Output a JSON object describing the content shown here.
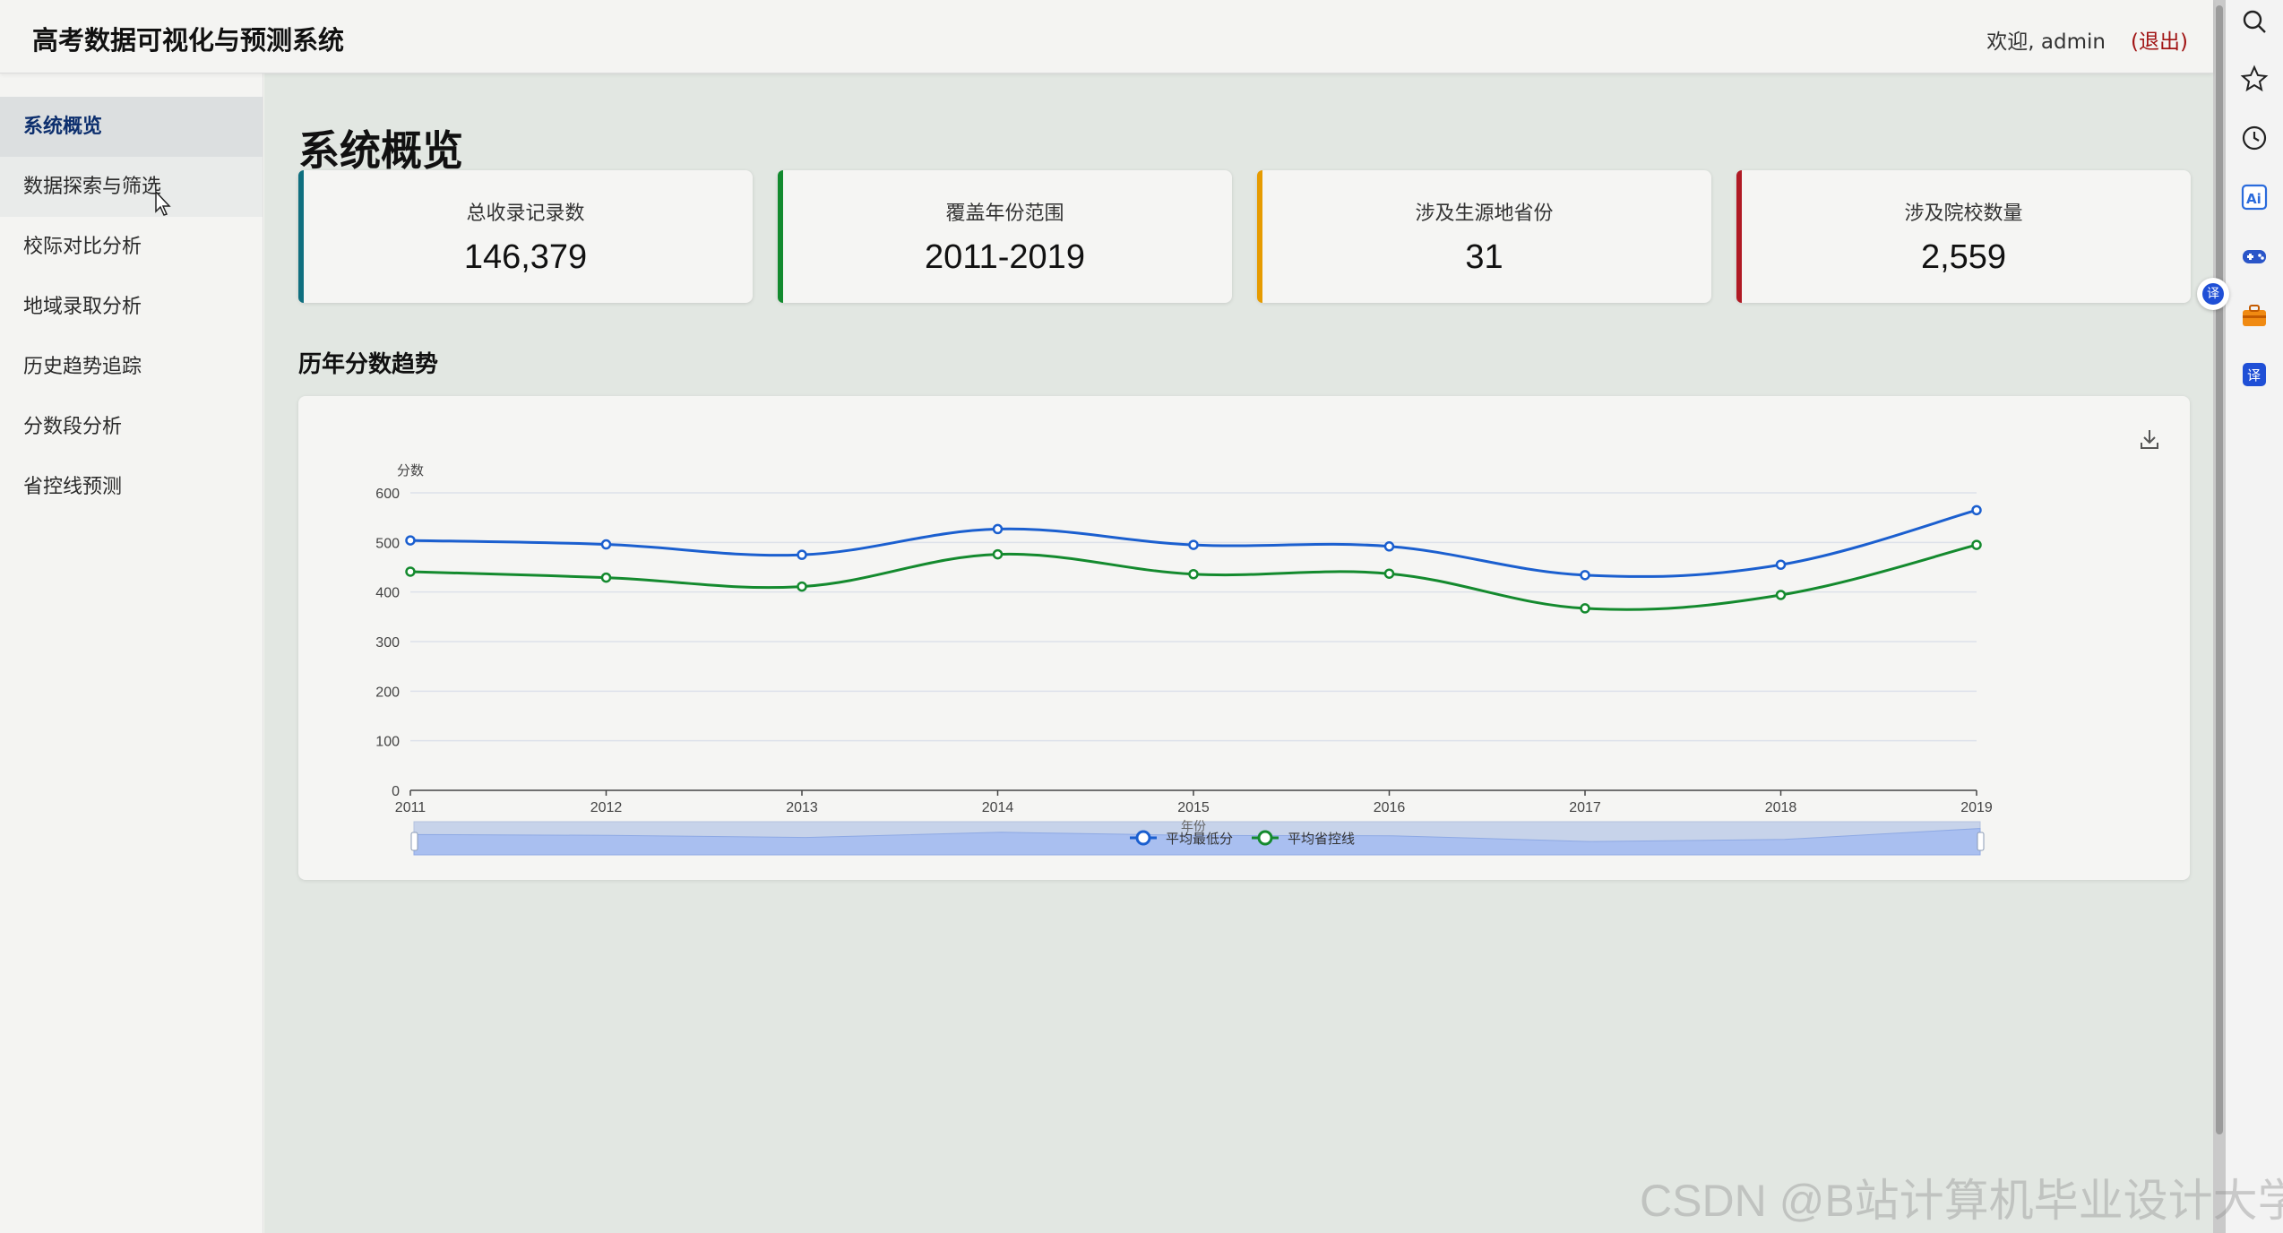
{
  "header": {
    "title": "高考数据可视化与预测系统",
    "welcome": "欢迎, admin",
    "logout": "(退出)"
  },
  "sidebar": {
    "items": [
      {
        "label": "系统概览"
      },
      {
        "label": "数据探索与筛选"
      },
      {
        "label": "校际对比分析"
      },
      {
        "label": "地域录取分析"
      },
      {
        "label": "历史趋势追踪"
      },
      {
        "label": "分数段分析"
      },
      {
        "label": "省控线预测"
      }
    ]
  },
  "main": {
    "title": "系统概览",
    "cards": [
      {
        "label": "总收录记录数",
        "value": "146,379",
        "accent": "#0f6f7f"
      },
      {
        "label": "覆盖年份范围",
        "value": "2011-2019",
        "accent": "#128a2e"
      },
      {
        "label": "涉及生源地省份",
        "value": "31",
        "accent": "#e69b00"
      },
      {
        "label": "涉及院校数量",
        "value": "2,559",
        "accent": "#b01a24"
      }
    ],
    "trend_title": "历年分数趋势"
  },
  "chart_data": {
    "type": "line",
    "title": "",
    "xlabel": "年份",
    "ylabel": "分数",
    "x": [
      "2011",
      "2012",
      "2013",
      "2014",
      "2015",
      "2016",
      "2017",
      "2018",
      "2019"
    ],
    "ylim": [
      0,
      600
    ],
    "yticks": [
      0,
      100,
      200,
      300,
      400,
      500,
      600
    ],
    "grid": true,
    "legend": "bottom",
    "series": [
      {
        "name": "平均最低分",
        "color": "#1b5fcf",
        "values": [
          504,
          496,
          475,
          527,
          495,
          492,
          434,
          455,
          565
        ]
      },
      {
        "name": "平均省控线",
        "color": "#148a2e",
        "values": [
          441,
          429,
          411,
          476,
          436,
          437,
          367,
          394,
          495
        ]
      }
    ]
  },
  "watermark": "CSDN @B站计算机毕业设计大学",
  "translate_badge": "译",
  "rightbar_icons": [
    "search-icon",
    "star-icon",
    "history-icon",
    "ai-icon",
    "game-icon",
    "toolbox-icon",
    "translate-icon"
  ]
}
